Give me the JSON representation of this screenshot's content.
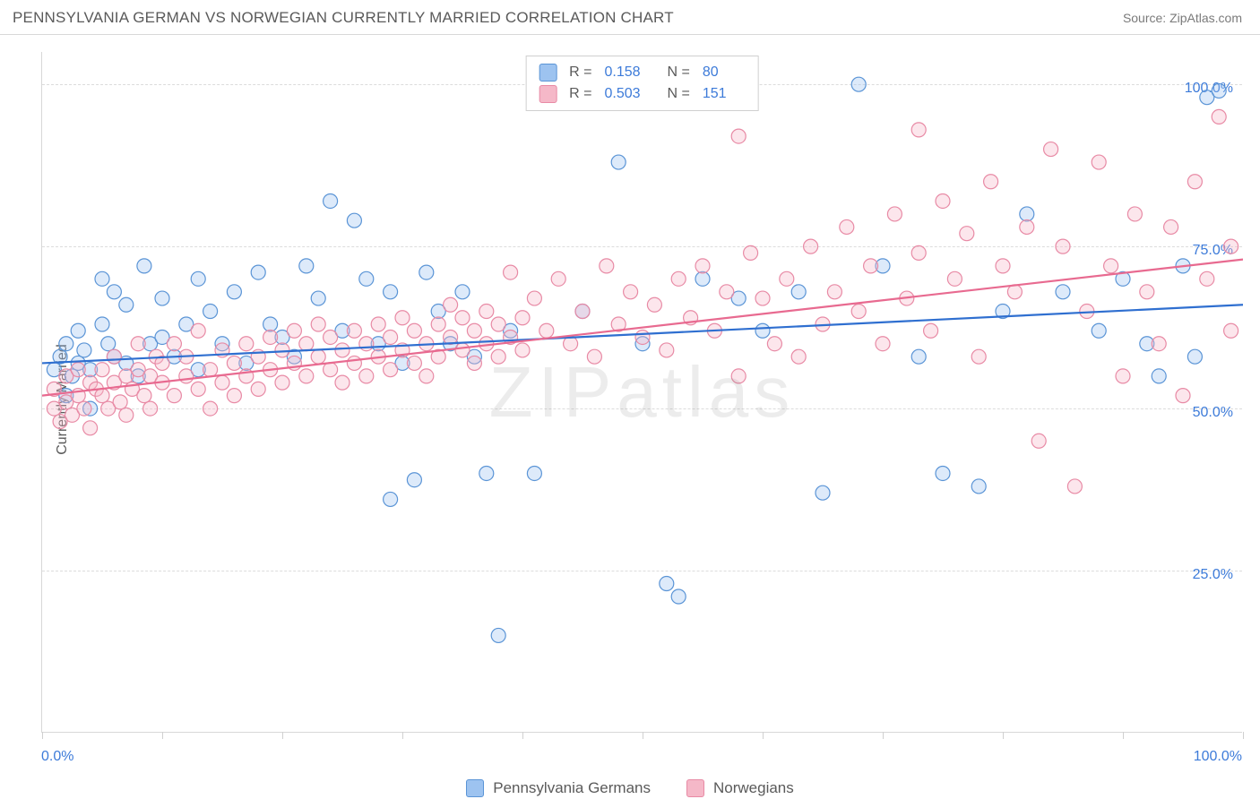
{
  "header": {
    "title": "PENNSYLVANIA GERMAN VS NORWEGIAN CURRENTLY MARRIED CORRELATION CHART",
    "source": "Source: ZipAtlas.com"
  },
  "chart": {
    "type": "scatter",
    "watermark": "ZIPatlas",
    "background_color": "#ffffff",
    "grid_color": "#dcdcdc",
    "border_color": "#d8d8d8",
    "ylabel": "Currently Married",
    "ylabel_fontsize": 16,
    "axis_label_color": "#3d7bd9",
    "text_color": "#5a5a5a",
    "xlim": [
      0,
      100
    ],
    "ylim": [
      0,
      105
    ],
    "x_ticks": [
      0,
      10,
      20,
      30,
      40,
      50,
      60,
      70,
      80,
      90,
      100
    ],
    "y_gridlines": [
      25,
      50,
      75,
      100
    ],
    "y_tick_labels": [
      "25.0%",
      "50.0%",
      "75.0%",
      "100.0%"
    ],
    "x_axis_labels": {
      "left": "0.0%",
      "right": "100.0%"
    },
    "marker_radius": 8,
    "marker_stroke_width": 1.2,
    "marker_fill_opacity": 0.35,
    "trend_line_width": 2.2,
    "series": [
      {
        "name": "Pennsylvania Germans",
        "color_fill": "#9dc3f0",
        "color_stroke": "#5a94d6",
        "line_color": "#2f6fd0",
        "R": "0.158",
        "N": "80",
        "trend": {
          "y_at_x0": 57,
          "y_at_x100": 66
        },
        "points": [
          [
            1,
            56
          ],
          [
            1.5,
            58
          ],
          [
            2,
            52
          ],
          [
            2,
            60
          ],
          [
            2.5,
            55
          ],
          [
            3,
            57
          ],
          [
            3,
            62
          ],
          [
            3.5,
            59
          ],
          [
            4,
            56
          ],
          [
            4,
            50
          ],
          [
            5,
            63
          ],
          [
            5,
            70
          ],
          [
            5.5,
            60
          ],
          [
            6,
            58
          ],
          [
            6,
            68
          ],
          [
            7,
            66
          ],
          [
            7,
            57
          ],
          [
            8,
            55
          ],
          [
            8.5,
            72
          ],
          [
            9,
            60
          ],
          [
            10,
            61
          ],
          [
            10,
            67
          ],
          [
            11,
            58
          ],
          [
            12,
            63
          ],
          [
            13,
            70
          ],
          [
            13,
            56
          ],
          [
            14,
            65
          ],
          [
            15,
            60
          ],
          [
            16,
            68
          ],
          [
            17,
            57
          ],
          [
            18,
            71
          ],
          [
            19,
            63
          ],
          [
            20,
            61
          ],
          [
            21,
            58
          ],
          [
            22,
            72
          ],
          [
            23,
            67
          ],
          [
            24,
            82
          ],
          [
            25,
            62
          ],
          [
            26,
            79
          ],
          [
            27,
            70
          ],
          [
            28,
            60
          ],
          [
            29,
            68
          ],
          [
            29,
            36
          ],
          [
            30,
            57
          ],
          [
            31,
            39
          ],
          [
            32,
            71
          ],
          [
            33,
            65
          ],
          [
            34,
            60
          ],
          [
            35,
            68
          ],
          [
            36,
            58
          ],
          [
            37,
            40
          ],
          [
            38,
            15
          ],
          [
            39,
            62
          ],
          [
            41,
            40
          ],
          [
            45,
            65
          ],
          [
            48,
            88
          ],
          [
            50,
            60
          ],
          [
            52,
            23
          ],
          [
            53,
            21
          ],
          [
            55,
            70
          ],
          [
            58,
            67
          ],
          [
            60,
            62
          ],
          [
            63,
            68
          ],
          [
            65,
            37
          ],
          [
            68,
            100
          ],
          [
            70,
            72
          ],
          [
            73,
            58
          ],
          [
            75,
            40
          ],
          [
            78,
            38
          ],
          [
            80,
            65
          ],
          [
            82,
            80
          ],
          [
            85,
            68
          ],
          [
            88,
            62
          ],
          [
            90,
            70
          ],
          [
            92,
            60
          ],
          [
            93,
            55
          ],
          [
            95,
            72
          ],
          [
            96,
            58
          ],
          [
            97,
            98
          ],
          [
            98,
            99
          ]
        ]
      },
      {
        "name": "Norwegians",
        "color_fill": "#f5b8c8",
        "color_stroke": "#e88aa5",
        "line_color": "#e86a90",
        "R": "0.503",
        "N": "151",
        "trend": {
          "y_at_x0": 52,
          "y_at_x100": 73
        },
        "points": [
          [
            1,
            50
          ],
          [
            1,
            53
          ],
          [
            1.5,
            48
          ],
          [
            2,
            51
          ],
          [
            2,
            55
          ],
          [
            2.5,
            49
          ],
          [
            3,
            52
          ],
          [
            3,
            56
          ],
          [
            3.5,
            50
          ],
          [
            4,
            54
          ],
          [
            4,
            47
          ],
          [
            4.5,
            53
          ],
          [
            5,
            52
          ],
          [
            5,
            56
          ],
          [
            5.5,
            50
          ],
          [
            6,
            54
          ],
          [
            6,
            58
          ],
          [
            6.5,
            51
          ],
          [
            7,
            55
          ],
          [
            7,
            49
          ],
          [
            7.5,
            53
          ],
          [
            8,
            56
          ],
          [
            8,
            60
          ],
          [
            8.5,
            52
          ],
          [
            9,
            55
          ],
          [
            9,
            50
          ],
          [
            9.5,
            58
          ],
          [
            10,
            54
          ],
          [
            10,
            57
          ],
          [
            11,
            52
          ],
          [
            11,
            60
          ],
          [
            12,
            55
          ],
          [
            12,
            58
          ],
          [
            13,
            53
          ],
          [
            13,
            62
          ],
          [
            14,
            56
          ],
          [
            14,
            50
          ],
          [
            15,
            59
          ],
          [
            15,
            54
          ],
          [
            16,
            57
          ],
          [
            16,
            52
          ],
          [
            17,
            60
          ],
          [
            17,
            55
          ],
          [
            18,
            58
          ],
          [
            18,
            53
          ],
          [
            19,
            61
          ],
          [
            19,
            56
          ],
          [
            20,
            59
          ],
          [
            20,
            54
          ],
          [
            21,
            62
          ],
          [
            21,
            57
          ],
          [
            22,
            60
          ],
          [
            22,
            55
          ],
          [
            23,
            58
          ],
          [
            23,
            63
          ],
          [
            24,
            56
          ],
          [
            24,
            61
          ],
          [
            25,
            59
          ],
          [
            25,
            54
          ],
          [
            26,
            62
          ],
          [
            26,
            57
          ],
          [
            27,
            60
          ],
          [
            27,
            55
          ],
          [
            28,
            63
          ],
          [
            28,
            58
          ],
          [
            29,
            61
          ],
          [
            29,
            56
          ],
          [
            30,
            59
          ],
          [
            30,
            64
          ],
          [
            31,
            57
          ],
          [
            31,
            62
          ],
          [
            32,
            60
          ],
          [
            32,
            55
          ],
          [
            33,
            63
          ],
          [
            33,
            58
          ],
          [
            34,
            61
          ],
          [
            34,
            66
          ],
          [
            35,
            59
          ],
          [
            35,
            64
          ],
          [
            36,
            62
          ],
          [
            36,
            57
          ],
          [
            37,
            60
          ],
          [
            37,
            65
          ],
          [
            38,
            58
          ],
          [
            38,
            63
          ],
          [
            39,
            61
          ],
          [
            39,
            71
          ],
          [
            40,
            59
          ],
          [
            40,
            64
          ],
          [
            41,
            67
          ],
          [
            42,
            62
          ],
          [
            43,
            70
          ],
          [
            44,
            60
          ],
          [
            45,
            65
          ],
          [
            46,
            58
          ],
          [
            47,
            72
          ],
          [
            48,
            63
          ],
          [
            49,
            68
          ],
          [
            50,
            61
          ],
          [
            51,
            66
          ],
          [
            52,
            59
          ],
          [
            53,
            70
          ],
          [
            54,
            64
          ],
          [
            55,
            72
          ],
          [
            56,
            62
          ],
          [
            57,
            68
          ],
          [
            58,
            55
          ],
          [
            59,
            74
          ],
          [
            60,
            67
          ],
          [
            61,
            60
          ],
          [
            62,
            70
          ],
          [
            63,
            58
          ],
          [
            64,
            75
          ],
          [
            65,
            63
          ],
          [
            66,
            68
          ],
          [
            67,
            78
          ],
          [
            68,
            65
          ],
          [
            69,
            72
          ],
          [
            70,
            60
          ],
          [
            71,
            80
          ],
          [
            72,
            67
          ],
          [
            73,
            74
          ],
          [
            74,
            62
          ],
          [
            75,
            82
          ],
          [
            76,
            70
          ],
          [
            77,
            77
          ],
          [
            78,
            58
          ],
          [
            79,
            85
          ],
          [
            80,
            72
          ],
          [
            81,
            68
          ],
          [
            82,
            78
          ],
          [
            83,
            45
          ],
          [
            84,
            90
          ],
          [
            85,
            75
          ],
          [
            86,
            38
          ],
          [
            87,
            65
          ],
          [
            88,
            88
          ],
          [
            89,
            72
          ],
          [
            90,
            55
          ],
          [
            91,
            80
          ],
          [
            92,
            68
          ],
          [
            93,
            60
          ],
          [
            94,
            78
          ],
          [
            95,
            52
          ],
          [
            96,
            85
          ],
          [
            97,
            70
          ],
          [
            98,
            95
          ],
          [
            99,
            62
          ],
          [
            99,
            75
          ],
          [
            73,
            93
          ],
          [
            58,
            92
          ]
        ]
      }
    ]
  }
}
